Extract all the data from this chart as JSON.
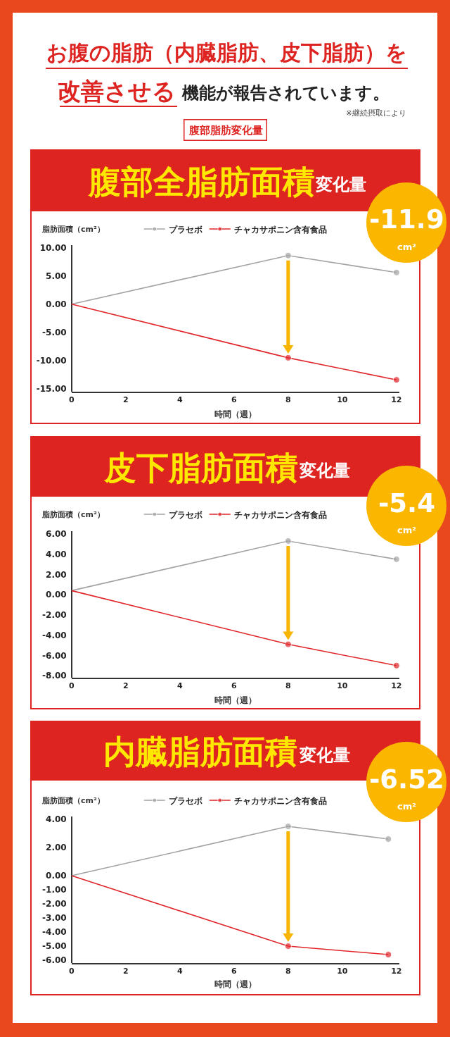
{
  "chart_data": [
    {
      "type": "other",
      "title": "お腹の脂肪（内臓脂肪、皮下脂肪）を",
      "subtitle": "腹部脂肪変化量",
      "annotations": [
        "改善させる",
        "機能が報告されています。",
        "※継続摂取により"
      ]
    },
    {
      "type": "line",
      "title": "腹部全脂肪面積",
      "subtitle": "変化量",
      "annotations": [
        "-11.9",
        "cm²"
      ],
      "ylabel": "脂肪面積（cm²）",
      "xlabel": "時間（週）",
      "x": [
        0,
        8,
        12
      ],
      "xlim": [
        0,
        12.1
      ],
      "xticks": [
        0,
        2,
        4,
        6,
        8,
        10,
        12
      ],
      "ylim": [
        -15.5,
        10.5
      ],
      "yticks": [
        {
          "value": 10,
          "label": "10.00"
        },
        {
          "value": 5,
          "label": "5.00"
        },
        {
          "value": 0,
          "label": "0.00"
        },
        {
          "value": -5,
          "label": "-5.00"
        },
        {
          "value": -10,
          "label": "-10.00"
        },
        {
          "value": -15,
          "label": "-15.00"
        }
      ],
      "marker": "circle",
      "legend": "top",
      "series": [
        {
          "name": "プラセボ",
          "color": "#a3a3a3",
          "values": [
            0,
            8.6,
            5.6
          ]
        },
        {
          "name": "チャカサポニン含有食品",
          "color": "#e0262b",
          "values": [
            0,
            -9.5,
            -13.4
          ]
        }
      ]
    },
    {
      "type": "line",
      "title": "皮下脂肪面積",
      "subtitle": "変化量",
      "annotations": [
        "-5.4",
        "cm²"
      ],
      "ylabel": "脂肪面積（cm²）",
      "xlabel": "時間（週）",
      "x": [
        0,
        8,
        12
      ],
      "xlim": [
        0,
        12.1
      ],
      "xticks": [
        0,
        2,
        4,
        6,
        8,
        10,
        12
      ],
      "ylim": [
        -8.2,
        6.3
      ],
      "yticks": [
        {
          "value": 6,
          "label": "6.00"
        },
        {
          "value": 4,
          "label": "4.00"
        },
        {
          "value": 2,
          "label": "2.00"
        },
        {
          "value": 0,
          "label": "0.00"
        },
        {
          "value": -2,
          "label": "-2.00"
        },
        {
          "value": -4,
          "label": "-4.00"
        },
        {
          "value": -6,
          "label": "-6.00"
        },
        {
          "value": -8,
          "label": "-8.00"
        }
      ],
      "marker": "circle",
      "legend": "top",
      "series": [
        {
          "name": "プラセボ",
          "color": "#a3a3a3",
          "values": [
            0.4,
            5.3,
            3.5
          ]
        },
        {
          "name": "チャカサポニン含有食品",
          "color": "#e0262b",
          "values": [
            0.4,
            -4.9,
            -7.0
          ]
        }
      ]
    },
    {
      "type": "line",
      "title": "内臓脂肪面積",
      "subtitle": "変化量",
      "annotations": [
        "-6.52",
        "cm²"
      ],
      "ylabel": "脂肪面積（cm²）",
      "xlabel": "時間（週）",
      "x": [
        0,
        8,
        11.7
      ],
      "xlim": [
        0,
        12.1
      ],
      "xticks": [
        0,
        2,
        4,
        6,
        8,
        10,
        12
      ],
      "ylim": [
        -6.2,
        4.2
      ],
      "yticks": [
        {
          "value": 4,
          "label": "4.00"
        },
        {
          "value": 2,
          "label": "2.00"
        },
        {
          "value": 0,
          "label": "0.00"
        },
        {
          "value": -1,
          "label": "-1.00"
        },
        {
          "value": -2,
          "label": "-2.00"
        },
        {
          "value": -3,
          "label": "-3.00"
        },
        {
          "value": -4,
          "label": "-4.00"
        },
        {
          "value": -5,
          "label": "-5.00"
        },
        {
          "value": -6,
          "label": "-6.00"
        }
      ],
      "marker": "circle",
      "legend": "top",
      "series": [
        {
          "name": "プラセボ",
          "color": "#a3a3a3",
          "values": [
            0,
            3.5,
            2.6
          ]
        },
        {
          "name": "チャカサポニン含有食品",
          "color": "#e0262b",
          "values": [
            0,
            -5.0,
            -5.6
          ]
        }
      ]
    }
  ]
}
